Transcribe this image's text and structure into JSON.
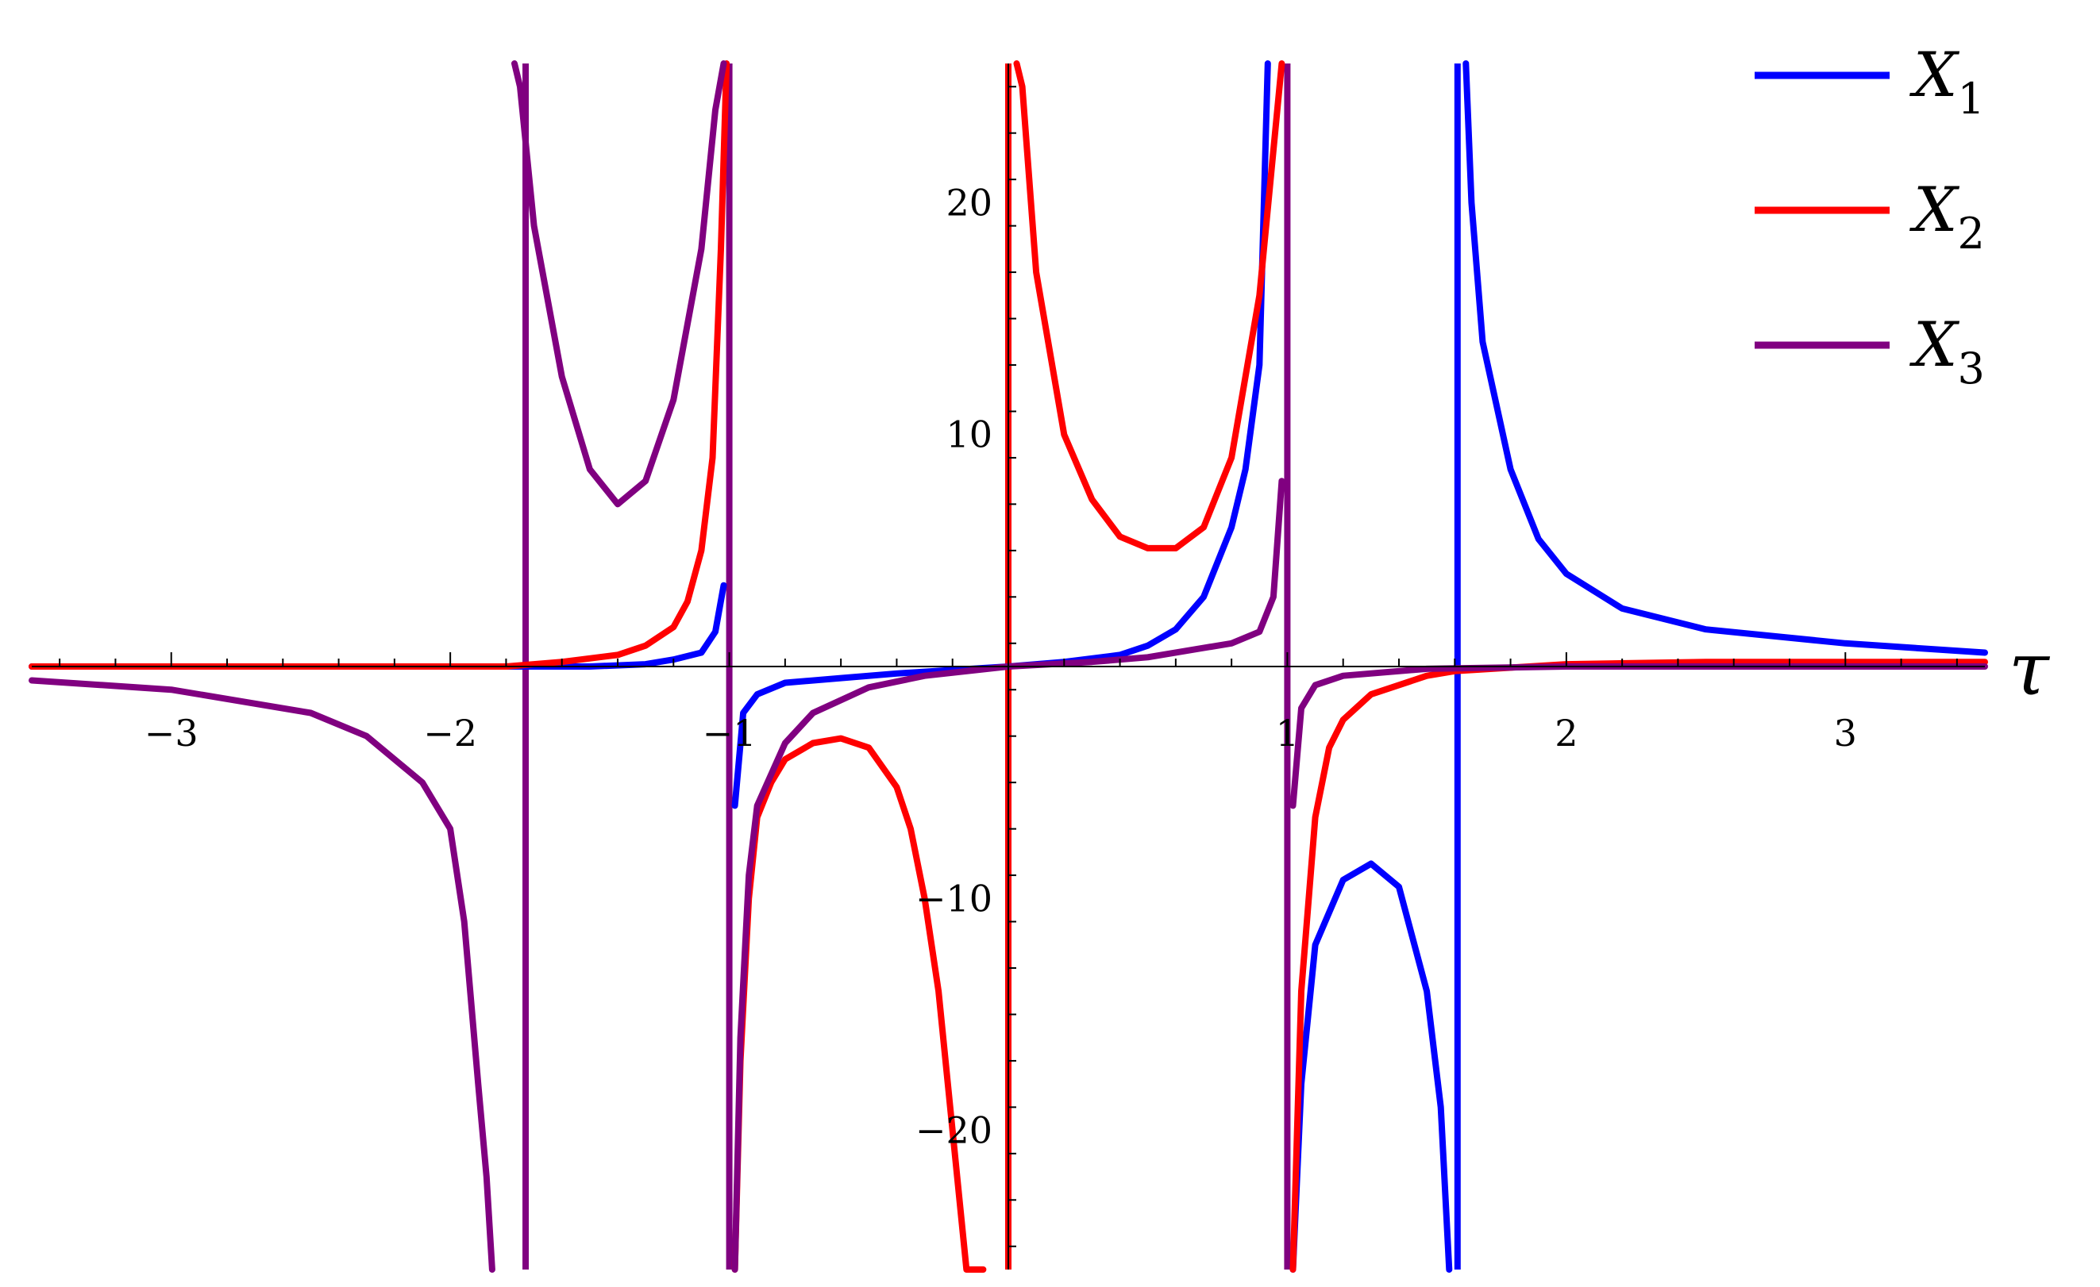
{
  "chart_data": {
    "type": "line",
    "title": "",
    "xlabel": "τ",
    "ylabel": "",
    "xlim": [
      -3.5,
      3.5
    ],
    "ylim": [
      -26,
      26
    ],
    "grid": false,
    "legend_position": "top-right",
    "x_ticks": [
      -3,
      -2,
      -1,
      1,
      2,
      3
    ],
    "x_tick_labels": [
      "−3",
      "−2",
      "−1",
      "1",
      "2",
      "3"
    ],
    "y_ticks": [
      -20,
      -10,
      10,
      20
    ],
    "y_tick_labels": [
      "−20",
      "−10",
      "10",
      "20"
    ],
    "series": [
      {
        "name": "X1",
        "legend_base": "X",
        "legend_sub": "1",
        "color": "#0000ff",
        "x": [
          -3.5,
          -3,
          -2.5,
          -2,
          -1.7,
          -1.5,
          -1.3,
          -1.2,
          -1.1,
          -1.05,
          -1.02,
          -0.98,
          -0.95,
          -0.9,
          -0.8,
          -0.6,
          -0.4,
          -0.2,
          0,
          0.2,
          0.4,
          0.5,
          0.6,
          0.7,
          0.8,
          0.85,
          0.9,
          0.93,
          1.02,
          1.05,
          1.1,
          1.2,
          1.3,
          1.4,
          1.5,
          1.55,
          1.58,
          1.64,
          1.66,
          1.7,
          1.8,
          1.9,
          2,
          2.2,
          2.5,
          3,
          3.5
        ],
        "y": [
          0,
          0,
          0,
          0,
          0,
          0,
          0.1,
          0.3,
          0.6,
          1.5,
          3.5,
          -6,
          -2,
          -1.2,
          -0.7,
          -0.5,
          -0.3,
          -0.15,
          0,
          0.2,
          0.5,
          0.9,
          1.6,
          3,
          6,
          8.5,
          13,
          26,
          -26,
          -18,
          -12,
          -9.2,
          -8.5,
          -9.5,
          -14,
          -19,
          -26,
          26,
          20,
          14,
          8.5,
          5.5,
          4,
          2.5,
          1.6,
          1,
          0.6
        ],
        "segments": [
          [
            0,
            11
          ],
          [
            11,
            28
          ],
          [
            28,
            37
          ],
          [
            37,
            47
          ]
        ]
      },
      {
        "name": "X2",
        "legend_base": "X",
        "legend_sub": "2",
        "color": "#ff0000",
        "x": [
          -3.5,
          -3,
          -2.5,
          -2,
          -1.8,
          -1.6,
          -1.4,
          -1.3,
          -1.2,
          -1.15,
          -1.1,
          -1.06,
          -1.03,
          -1.01,
          -0.98,
          -0.96,
          -0.93,
          -0.9,
          -0.85,
          -0.8,
          -0.7,
          -0.6,
          -0.5,
          -0.4,
          -0.35,
          -0.3,
          -0.25,
          -0.2,
          -0.15,
          -0.12,
          -0.09,
          0.03,
          0.05,
          0.1,
          0.2,
          0.3,
          0.4,
          0.5,
          0.6,
          0.7,
          0.8,
          0.9,
          0.98,
          1.02,
          1.05,
          1.1,
          1.15,
          1.2,
          1.3,
          1.5,
          1.6,
          2,
          2.5,
          3,
          3.5
        ],
        "y": [
          0,
          0,
          0,
          0,
          0,
          0.2,
          0.5,
          0.9,
          1.7,
          2.8,
          5,
          9,
          18,
          26,
          -26,
          -17,
          -10,
          -6.5,
          -5,
          -4,
          -3.3,
          -3.1,
          -3.5,
          -5.2,
          -7,
          -10,
          -14,
          -20,
          -26,
          -26,
          -26,
          26,
          25,
          17,
          10,
          7.2,
          5.6,
          5.1,
          5.1,
          6,
          9,
          16,
          26,
          -26,
          -14,
          -6.5,
          -3.5,
          -2.3,
          -1.2,
          -0.4,
          -0.2,
          0.1,
          0.2,
          0.2,
          0.2
        ],
        "segments": [
          [
            0,
            14
          ],
          [
            14,
            31
          ],
          [
            31,
            43
          ],
          [
            43,
            55
          ]
        ]
      },
      {
        "name": "X3",
        "legend_base": "X",
        "legend_sub": "3",
        "color": "#800080",
        "x": [
          -3.5,
          -3,
          -2.5,
          -2.3,
          -2.1,
          -2,
          -1.95,
          -1.9,
          -1.87,
          -1.85,
          -1.77,
          -1.75,
          -1.7,
          -1.6,
          -1.5,
          -1.4,
          -1.3,
          -1.2,
          -1.1,
          -1.05,
          -1.02,
          -0.98,
          -0.96,
          -0.93,
          -0.9,
          -0.8,
          -0.7,
          -0.5,
          -0.3,
          0,
          0.3,
          0.5,
          0.7,
          0.8,
          0.9,
          0.95,
          0.98,
          1.02,
          1.05,
          1.1,
          1.2,
          1.5,
          2,
          2.5,
          3,
          3.5
        ],
        "y": [
          -0.6,
          -1,
          -2,
          -3,
          -5,
          -7,
          -11,
          -18,
          -22,
          -26,
          26,
          25,
          19,
          12.5,
          8.5,
          7,
          8,
          11.5,
          18,
          24,
          26,
          -26,
          -16,
          -9,
          -6,
          -3.3,
          -2,
          -0.9,
          -0.4,
          0,
          0.2,
          0.4,
          0.8,
          1,
          1.5,
          3,
          8,
          -6,
          -1.8,
          -0.8,
          -0.4,
          -0.1,
          0,
          0,
          0,
          0
        ],
        "segments": [
          [
            0,
            10
          ],
          [
            10,
            21
          ],
          [
            21,
            37
          ],
          [
            37,
            46
          ]
        ]
      }
    ],
    "asymptotes": [
      {
        "x": -1.73,
        "color": "#800080"
      },
      {
        "x": -1.0,
        "color": "#800080"
      },
      {
        "x": 0.0,
        "color": "#ff0000"
      },
      {
        "x": 1.0,
        "color": "#800080"
      },
      {
        "x": 1.61,
        "color": "#0000ff"
      }
    ]
  }
}
